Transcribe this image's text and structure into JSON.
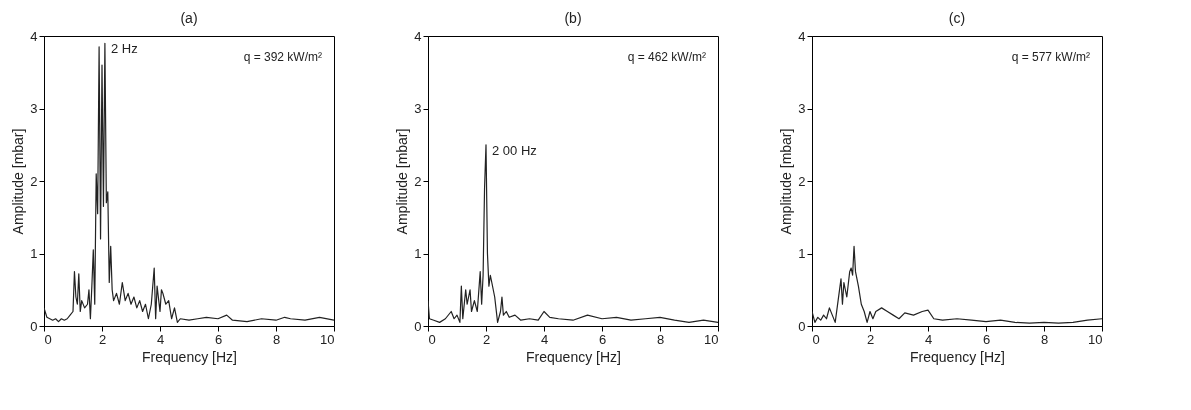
{
  "chart_data": [
    {
      "type": "line",
      "title": "(a)",
      "xlabel": "Frequency [Hz]",
      "ylabel": "Amplitude [mbar]",
      "xlim": [
        0,
        10
      ],
      "ylim": [
        0,
        4
      ],
      "xticks": [
        0,
        2,
        4,
        6,
        8,
        10
      ],
      "yticks": [
        0,
        1,
        2,
        3,
        4
      ],
      "grid": false,
      "annotations": [
        {
          "text": "2 Hz",
          "x": 2.1,
          "y": 3.9
        },
        "q = 392 kW/m²"
      ],
      "series": [
        {
          "color": "#222222",
          "x": [
            0,
            0.1,
            0.2,
            0.3,
            0.4,
            0.5,
            0.6,
            0.7,
            0.8,
            0.9,
            1.0,
            1.05,
            1.1,
            1.15,
            1.2,
            1.25,
            1.3,
            1.4,
            1.5,
            1.55,
            1.6,
            1.65,
            1.7,
            1.75,
            1.8,
            1.85,
            1.9,
            1.95,
            2.0,
            2.05,
            2.1,
            2.15,
            2.2,
            2.25,
            2.3,
            2.35,
            2.4,
            2.5,
            2.6,
            2.7,
            2.8,
            2.9,
            3.0,
            3.1,
            3.2,
            3.3,
            3.4,
            3.5,
            3.6,
            3.7,
            3.8,
            3.85,
            3.9,
            4.0,
            4.05,
            4.1,
            4.2,
            4.3,
            4.4,
            4.5,
            4.6,
            4.7,
            5.0,
            5.3,
            5.6,
            6.0,
            6.3,
            6.5,
            7.0,
            7.5,
            8.0,
            8.3,
            8.5,
            9.0,
            9.5,
            10
          ],
          "values": [
            0.25,
            0.12,
            0.1,
            0.08,
            0.1,
            0.06,
            0.1,
            0.08,
            0.1,
            0.15,
            0.2,
            0.75,
            0.4,
            0.3,
            0.72,
            0.2,
            0.35,
            0.25,
            0.3,
            0.5,
            0.1,
            0.55,
            1.05,
            0.3,
            2.1,
            1.55,
            3.85,
            1.2,
            3.6,
            1.65,
            3.9,
            1.7,
            1.85,
            0.6,
            1.1,
            0.5,
            0.35,
            0.45,
            0.3,
            0.6,
            0.35,
            0.45,
            0.3,
            0.4,
            0.25,
            0.35,
            0.2,
            0.3,
            0.1,
            0.3,
            0.8,
            0.1,
            0.55,
            0.2,
            0.5,
            0.45,
            0.3,
            0.35,
            0.1,
            0.25,
            0.05,
            0.1,
            0.08,
            0.1,
            0.12,
            0.1,
            0.15,
            0.08,
            0.06,
            0.1,
            0.08,
            0.12,
            0.1,
            0.08,
            0.12,
            0.08
          ]
        }
      ]
    },
    {
      "type": "line",
      "title": "(b)",
      "xlabel": "Frequency [Hz]",
      "ylabel": "Amplitude [mbar]",
      "xlim": [
        0,
        10
      ],
      "ylim": [
        0,
        4
      ],
      "xticks": [
        0,
        2,
        4,
        6,
        8,
        10
      ],
      "yticks": [
        0,
        1,
        2,
        3,
        4
      ],
      "grid": false,
      "annotations": [
        {
          "text": "2 00 Hz",
          "x": 2.0,
          "y": 2.5
        },
        "q = 462 kW/m²"
      ],
      "series": [
        {
          "color": "#222222",
          "x": [
            0,
            0.05,
            0.2,
            0.4,
            0.6,
            0.8,
            0.9,
            1.0,
            1.1,
            1.15,
            1.2,
            1.3,
            1.35,
            1.45,
            1.5,
            1.6,
            1.7,
            1.8,
            1.85,
            1.9,
            1.95,
            2.0,
            2.05,
            2.1,
            2.15,
            2.2,
            2.3,
            2.4,
            2.5,
            2.55,
            2.6,
            2.7,
            2.8,
            3.0,
            3.2,
            3.5,
            3.8,
            4.0,
            4.2,
            4.5,
            5.0,
            5.5,
            6.0,
            6.5,
            7.0,
            7.5,
            8.0,
            8.5,
            9.0,
            9.5,
            10
          ],
          "values": [
            0.35,
            0.1,
            0.08,
            0.05,
            0.1,
            0.2,
            0.1,
            0.15,
            0.05,
            0.55,
            0.1,
            0.5,
            0.3,
            0.5,
            0.2,
            0.35,
            0.2,
            0.75,
            0.3,
            0.7,
            1.9,
            2.5,
            1.0,
            0.55,
            0.7,
            0.6,
            0.4,
            0.05,
            0.2,
            0.4,
            0.15,
            0.2,
            0.12,
            0.15,
            0.08,
            0.1,
            0.08,
            0.2,
            0.12,
            0.1,
            0.08,
            0.15,
            0.1,
            0.12,
            0.08,
            0.1,
            0.12,
            0.08,
            0.05,
            0.08,
            0.05
          ]
        }
      ]
    },
    {
      "type": "line",
      "title": "(c)",
      "xlabel": "Frequency [Hz]",
      "ylabel": "Amplitude [mbar]",
      "xlim": [
        0,
        10
      ],
      "ylim": [
        0,
        4
      ],
      "xticks": [
        0,
        2,
        4,
        6,
        8,
        10
      ],
      "yticks": [
        0,
        1,
        2,
        3,
        4
      ],
      "grid": false,
      "annotations": [
        "q = 577 kW/m²"
      ],
      "series": [
        {
          "color": "#222222",
          "x": [
            0,
            0.1,
            0.2,
            0.3,
            0.4,
            0.5,
            0.6,
            0.7,
            0.8,
            0.9,
            1.0,
            1.05,
            1.1,
            1.2,
            1.3,
            1.35,
            1.4,
            1.45,
            1.5,
            1.6,
            1.7,
            1.8,
            1.9,
            2.0,
            2.1,
            2.2,
            2.4,
            2.6,
            2.8,
            3.0,
            3.2,
            3.5,
            3.8,
            4.0,
            4.2,
            4.5,
            5.0,
            5.5,
            6.0,
            6.5,
            7.0,
            7.5,
            8.0,
            8.5,
            9.0,
            9.5,
            10
          ],
          "values": [
            0.2,
            0.05,
            0.12,
            0.08,
            0.15,
            0.1,
            0.25,
            0.15,
            0.05,
            0.35,
            0.65,
            0.3,
            0.6,
            0.4,
            0.75,
            0.8,
            0.7,
            1.1,
            0.75,
            0.55,
            0.3,
            0.2,
            0.05,
            0.2,
            0.1,
            0.2,
            0.25,
            0.2,
            0.15,
            0.1,
            0.18,
            0.15,
            0.2,
            0.22,
            0.1,
            0.08,
            0.1,
            0.08,
            0.06,
            0.08,
            0.05,
            0.04,
            0.05,
            0.04,
            0.05,
            0.08,
            0.1
          ]
        }
      ]
    }
  ]
}
